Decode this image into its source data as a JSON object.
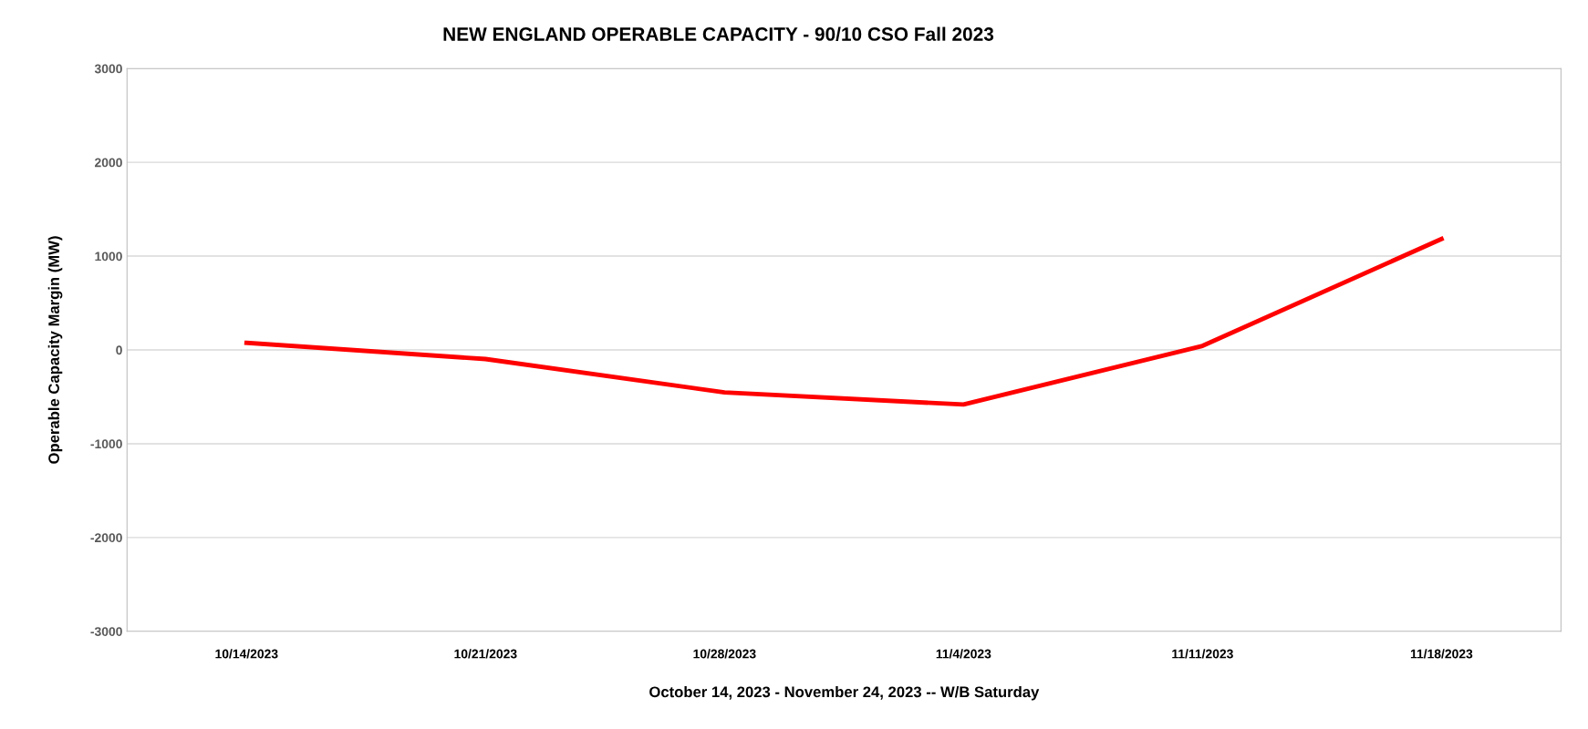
{
  "chart_data": {
    "type": "line",
    "title": "NEW ENGLAND OPERABLE CAPACITY - 90/10 CSO Fall 2023",
    "xlabel": "October 14, 2023 - November 24, 2023 -- W/B Saturday",
    "ylabel": "Operable Capacity Margin (MW)",
    "categories": [
      "10/14/2023",
      "10/21/2023",
      "10/28/2023",
      "11/4/2023",
      "11/11/2023",
      "11/18/2023"
    ],
    "series": [
      {
        "color": "#ff0000",
        "values": [
          75,
          -97,
          -453,
          -582,
          43,
          1183
        ]
      }
    ],
    "ylim": [
      -3000,
      3000
    ],
    "yticks": [
      -3000,
      -2000,
      -1000,
      0,
      1000,
      2000,
      3000
    ],
    "grid": "y",
    "legend": false,
    "marker": "none",
    "line_style": "solid"
  }
}
